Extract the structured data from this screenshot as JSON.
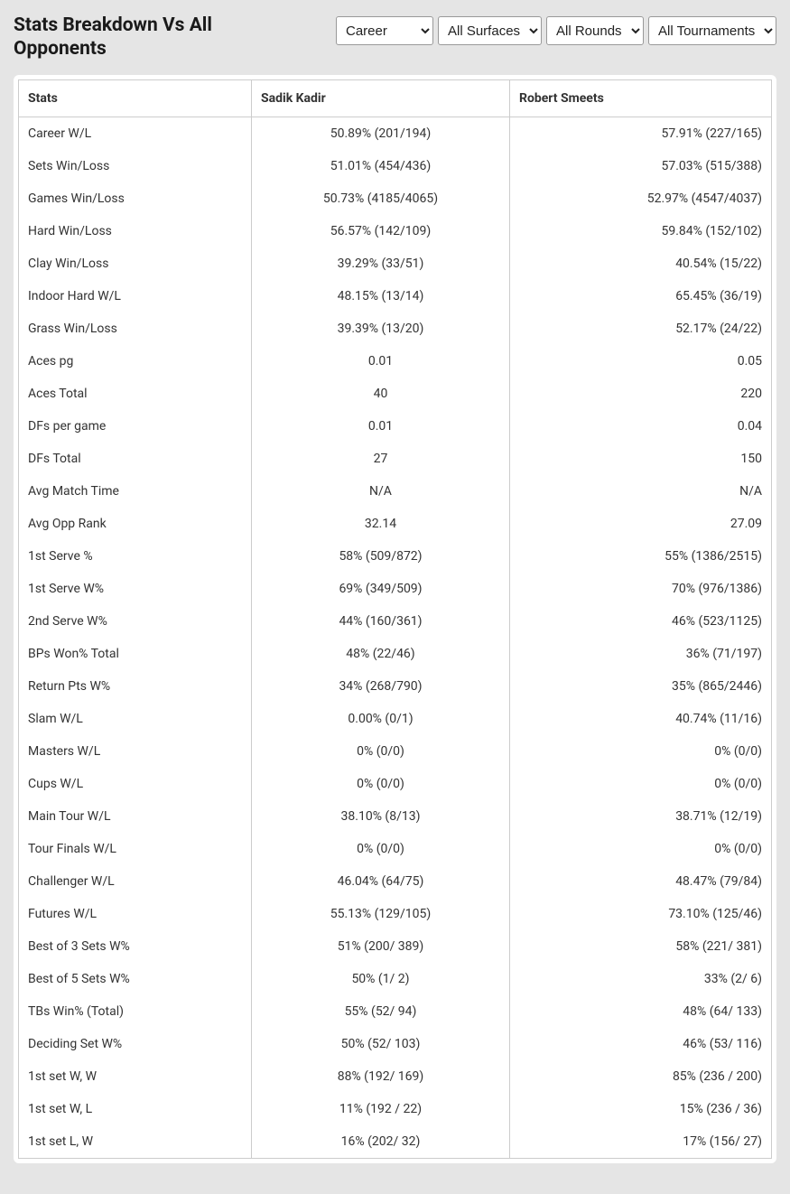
{
  "header": {
    "title": "Stats Breakdown Vs All Opponents"
  },
  "filters": {
    "career": {
      "selected": "Career",
      "options": [
        "Career"
      ]
    },
    "surface": {
      "selected": "All Surfaces",
      "options": [
        "All Surfaces"
      ]
    },
    "rounds": {
      "selected": "All Rounds",
      "options": [
        "All Rounds"
      ]
    },
    "tournaments": {
      "selected": "All Tournaments",
      "options": [
        "All Tournaments"
      ]
    }
  },
  "table": {
    "columns": {
      "stats": "Stats",
      "player_a": "Sadik Kadir",
      "player_b": "Robert Smeets"
    },
    "rows": [
      {
        "stat": "Career W/L",
        "a": "50.89% (201/194)",
        "b": "57.91% (227/165)"
      },
      {
        "stat": "Sets Win/Loss",
        "a": "51.01% (454/436)",
        "b": "57.03% (515/388)"
      },
      {
        "stat": "Games Win/Loss",
        "a": "50.73% (4185/4065)",
        "b": "52.97% (4547/4037)"
      },
      {
        "stat": "Hard Win/Loss",
        "a": "56.57% (142/109)",
        "b": "59.84% (152/102)"
      },
      {
        "stat": "Clay Win/Loss",
        "a": "39.29% (33/51)",
        "b": "40.54% (15/22)"
      },
      {
        "stat": "Indoor Hard W/L",
        "a": "48.15% (13/14)",
        "b": "65.45% (36/19)"
      },
      {
        "stat": "Grass Win/Loss",
        "a": "39.39% (13/20)",
        "b": "52.17% (24/22)"
      },
      {
        "stat": "Aces pg",
        "a": "0.01",
        "b": "0.05"
      },
      {
        "stat": "Aces Total",
        "a": "40",
        "b": "220"
      },
      {
        "stat": "DFs per game",
        "a": "0.01",
        "b": "0.04"
      },
      {
        "stat": "DFs Total",
        "a": "27",
        "b": "150"
      },
      {
        "stat": "Avg Match Time",
        "a": "N/A",
        "b": "N/A"
      },
      {
        "stat": "Avg Opp Rank",
        "a": "32.14",
        "b": "27.09"
      },
      {
        "stat": "1st Serve %",
        "a": "58% (509/872)",
        "b": "55% (1386/2515)"
      },
      {
        "stat": "1st Serve W%",
        "a": "69% (349/509)",
        "b": "70% (976/1386)"
      },
      {
        "stat": "2nd Serve W%",
        "a": "44% (160/361)",
        "b": "46% (523/1125)"
      },
      {
        "stat": "BPs Won% Total",
        "a": "48% (22/46)",
        "b": "36% (71/197)"
      },
      {
        "stat": "Return Pts W%",
        "a": "34% (268/790)",
        "b": "35% (865/2446)"
      },
      {
        "stat": "Slam W/L",
        "a": "0.00% (0/1)",
        "b": "40.74% (11/16)"
      },
      {
        "stat": "Masters W/L",
        "a": "0% (0/0)",
        "b": "0% (0/0)"
      },
      {
        "stat": "Cups W/L",
        "a": "0% (0/0)",
        "b": "0% (0/0)"
      },
      {
        "stat": "Main Tour W/L",
        "a": "38.10% (8/13)",
        "b": "38.71% (12/19)"
      },
      {
        "stat": "Tour Finals W/L",
        "a": "0% (0/0)",
        "b": "0% (0/0)"
      },
      {
        "stat": "Challenger W/L",
        "a": "46.04% (64/75)",
        "b": "48.47% (79/84)"
      },
      {
        "stat": "Futures W/L",
        "a": "55.13% (129/105)",
        "b": "73.10% (125/46)"
      },
      {
        "stat": "Best of 3 Sets W%",
        "a": "51% (200/ 389)",
        "b": "58% (221/ 381)"
      },
      {
        "stat": "Best of 5 Sets W%",
        "a": "50% (1/ 2)",
        "b": "33% (2/ 6)"
      },
      {
        "stat": "TBs Win% (Total)",
        "a": "55% (52/ 94)",
        "b": "48% (64/ 133)"
      },
      {
        "stat": "Deciding Set W%",
        "a": "50% (52/ 103)",
        "b": "46% (53/ 116)"
      },
      {
        "stat": "1st set W, W",
        "a": "88% (192/ 169)",
        "b": "85% (236 / 200)"
      },
      {
        "stat": "1st set W, L",
        "a": "11% (192 / 22)",
        "b": "15% (236 / 36)"
      },
      {
        "stat": "1st set L, W",
        "a": "16% (202/ 32)",
        "b": "17% (156/ 27)"
      }
    ]
  }
}
